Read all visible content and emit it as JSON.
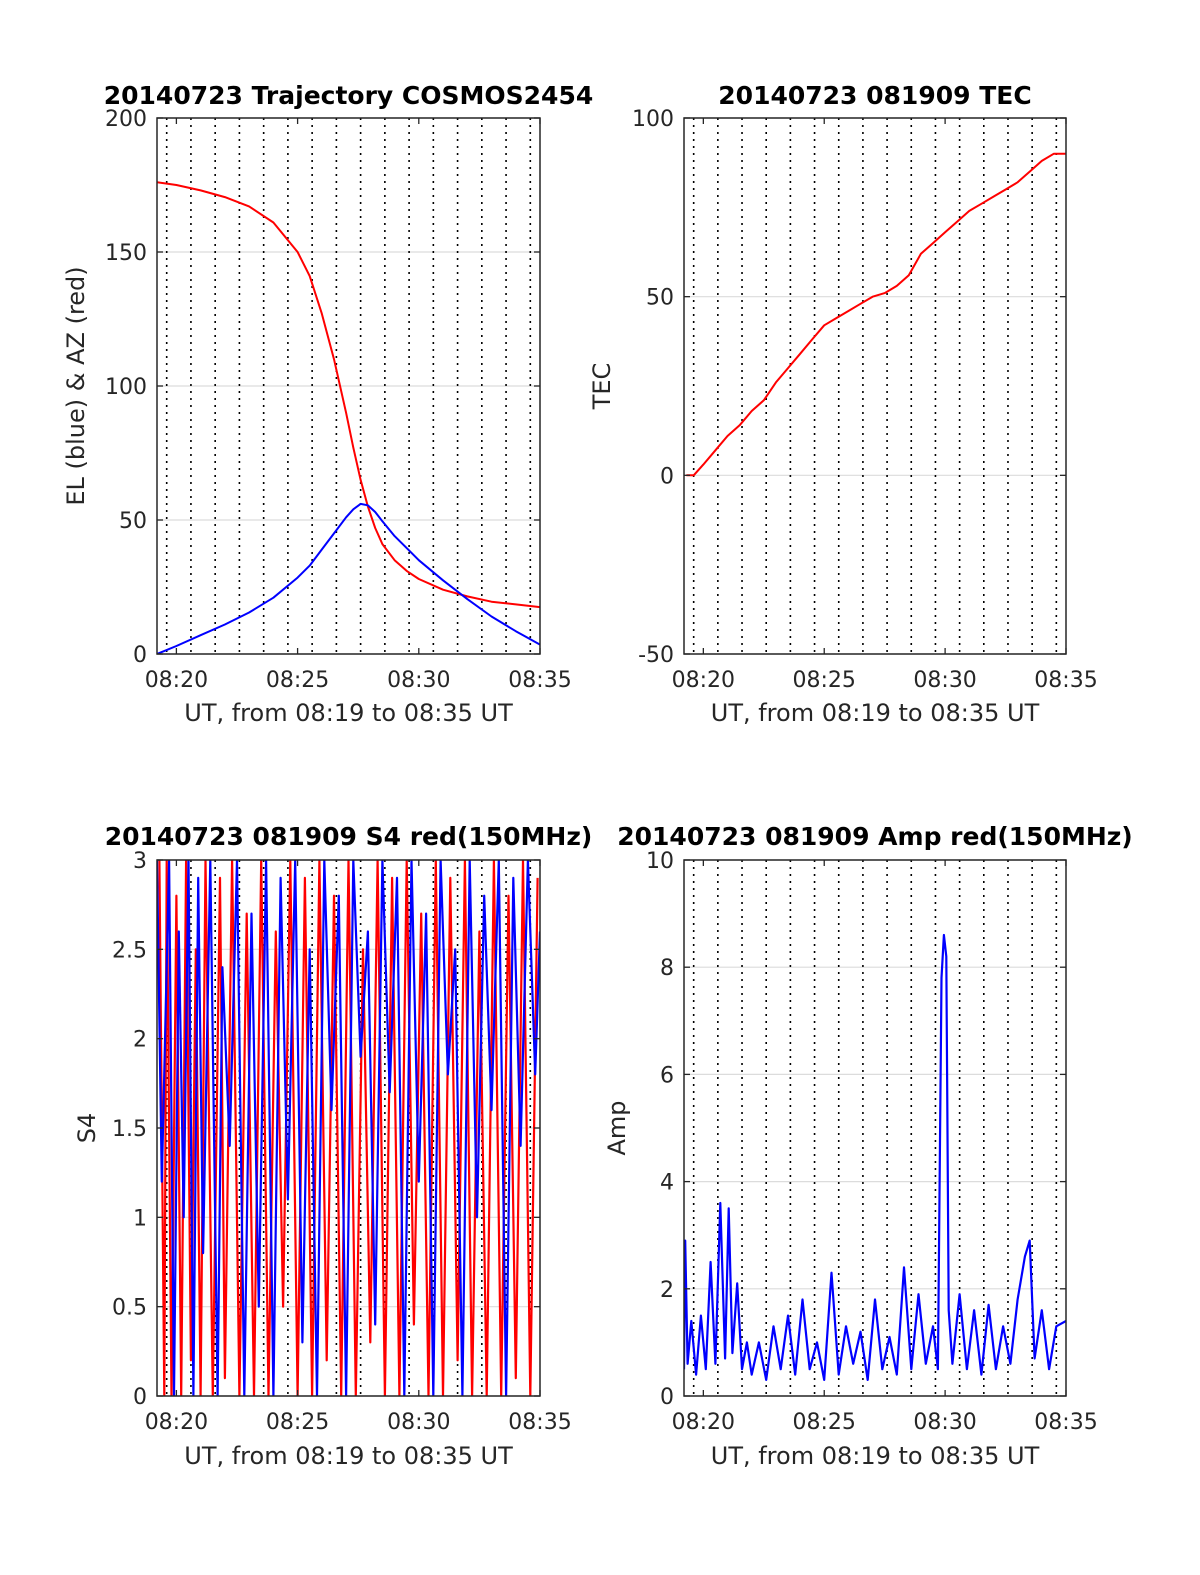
{
  "chart_data": [
    {
      "id": "p1",
      "type": "line",
      "title": "20140723 Trajectory COSMOS2454",
      "xlabel": "UT, from 08:19 to 08:35 UT",
      "ylabel": "EL (blue) & AZ (red)",
      "xlim": [
        19.2,
        35
      ],
      "ylim": [
        0,
        200
      ],
      "xticks": [
        20,
        25,
        30,
        35
      ],
      "xtick_labels": [
        "08:20",
        "08:25",
        "08:30",
        "08:35"
      ],
      "yticks": [
        0,
        50,
        100,
        150,
        200
      ],
      "ytick_labels": [
        "0",
        "50",
        "100",
        "150",
        "200"
      ],
      "minute_gridlines": [
        19.6,
        20.6,
        21.6,
        22.6,
        23.6,
        24.6,
        25.6,
        26.6,
        27.6,
        28.6,
        29.6,
        30.6,
        31.6,
        32.6,
        33.6,
        34.6
      ],
      "grid": true,
      "series": [
        {
          "color": "#ff0000",
          "x": [
            19.2,
            20,
            21,
            22,
            23,
            24,
            25,
            25.5,
            26,
            26.5,
            27,
            27.3,
            27.6,
            27.9,
            28.2,
            28.5,
            29,
            29.5,
            30,
            31,
            32,
            33,
            34,
            35
          ],
          "y": [
            176,
            175,
            173,
            170.5,
            167,
            161,
            150,
            141,
            127,
            110,
            90,
            77,
            65,
            55,
            47,
            41,
            35,
            31,
            28,
            24,
            21.5,
            19.5,
            18.5,
            17.5
          ]
        },
        {
          "color": "#0000ff",
          "x": [
            19.2,
            20,
            21,
            22,
            23,
            24,
            25,
            25.5,
            26,
            26.5,
            27,
            27.3,
            27.6,
            27.9,
            28.2,
            28.5,
            29,
            29.5,
            30,
            31,
            32,
            33,
            34,
            35
          ],
          "y": [
            0,
            3,
            7,
            11,
            15.5,
            21,
            28.5,
            33,
            39,
            45,
            51,
            54,
            56,
            55.5,
            53,
            49.5,
            44,
            39.5,
            35,
            27.5,
            20.5,
            14,
            8.5,
            3.5
          ]
        }
      ]
    },
    {
      "id": "p2",
      "type": "line",
      "title": "20140723 081909 TEC",
      "xlabel": "UT, from 08:19 to 08:35 UT",
      "ylabel": "TEC",
      "xlim": [
        19.2,
        35
      ],
      "ylim": [
        -50,
        100
      ],
      "xticks": [
        20,
        25,
        30,
        35
      ],
      "xtick_labels": [
        "08:20",
        "08:25",
        "08:30",
        "08:35"
      ],
      "yticks": [
        -50,
        0,
        50,
        100
      ],
      "ytick_labels": [
        "-50",
        "0",
        "50",
        "100"
      ],
      "minute_gridlines": [
        19.6,
        20.6,
        21.6,
        22.6,
        23.6,
        24.6,
        25.6,
        26.6,
        27.6,
        28.6,
        29.6,
        30.6,
        31.6,
        32.6,
        33.6,
        34.6
      ],
      "grid": true,
      "series": [
        {
          "color": "#ff0000",
          "x": [
            19.3,
            19.6,
            20,
            20.5,
            21,
            21.5,
            22,
            22.5,
            23,
            23.5,
            24,
            24.5,
            25,
            25.5,
            26,
            26.5,
            27,
            27.5,
            28,
            28.5,
            29,
            29.5,
            30,
            30.5,
            31,
            31.5,
            32,
            32.5,
            33,
            33.5,
            34,
            34.5,
            35
          ],
          "y": [
            0,
            0,
            3,
            7,
            11,
            14,
            18,
            21,
            26,
            30,
            34,
            38,
            42,
            44,
            46,
            48,
            50,
            51,
            53,
            56,
            62,
            65,
            68,
            71,
            74,
            76,
            78,
            80,
            82,
            85,
            88,
            90,
            90
          ]
        }
      ]
    },
    {
      "id": "p3",
      "type": "line",
      "title": "20140723 081909 S4 red(150MHz)",
      "xlabel": "UT, from 08:19 to 08:35 UT",
      "ylabel": "S4",
      "xlim": [
        19.2,
        35
      ],
      "ylim": [
        0,
        3
      ],
      "xticks": [
        20,
        25,
        30,
        35
      ],
      "xtick_labels": [
        "08:20",
        "08:25",
        "08:30",
        "08:35"
      ],
      "yticks": [
        0,
        0.5,
        1,
        1.5,
        2,
        2.5,
        3
      ],
      "ytick_labels": [
        "0",
        "0.5",
        "1",
        "1.5",
        "2",
        "2.5",
        "3"
      ],
      "minute_gridlines": [
        19.6,
        20.6,
        21.6,
        22.6,
        23.6,
        24.6,
        25.6,
        26.6,
        27.6,
        28.6,
        29.6,
        30.6,
        31.6,
        32.6,
        33.6,
        34.6
      ],
      "grid": true,
      "series": [
        {
          "color": "#ff0000",
          "x": [
            19.3,
            19.5,
            19.6,
            19.8,
            20,
            20.2,
            20.4,
            20.6,
            20.8,
            21,
            21.2,
            21.5,
            21.8,
            22,
            22.3,
            22.6,
            22.9,
            23.2,
            23.5,
            23.8,
            24.1,
            24.4,
            24.7,
            25,
            25.3,
            25.6,
            25.9,
            26.2,
            26.5,
            26.8,
            27.1,
            27.4,
            27.7,
            28,
            28.3,
            28.6,
            28.9,
            29.2,
            29.5,
            29.8,
            30.1,
            30.4,
            30.7,
            31,
            31.3,
            31.6,
            31.9,
            32.2,
            32.5,
            32.8,
            33.1,
            33.4,
            33.7,
            34,
            34.3,
            34.6,
            34.9
          ],
          "y": [
            3,
            0,
            3,
            0,
            2.8,
            0,
            3,
            0.2,
            2.5,
            0,
            3,
            0,
            2.9,
            0.1,
            3,
            0,
            2.7,
            0,
            3,
            0,
            2.6,
            0.5,
            3,
            0,
            2.9,
            0,
            3,
            0.2,
            2.8,
            0,
            3,
            0,
            2.5,
            0.3,
            3,
            0,
            2.9,
            0,
            3,
            0.4,
            2.7,
            0,
            3,
            0,
            2.9,
            0.2,
            3,
            0,
            2.6,
            0,
            3,
            0,
            2.8,
            0.1,
            3,
            0,
            2.9
          ]
        },
        {
          "color": "#0000ff",
          "x": [
            19.2,
            19.4,
            19.7,
            19.9,
            20.1,
            20.3,
            20.5,
            20.7,
            20.9,
            21.1,
            21.4,
            21.7,
            21.9,
            22.2,
            22.5,
            22.8,
            23.1,
            23.4,
            23.7,
            24,
            24.3,
            24.6,
            24.9,
            25.2,
            25.5,
            25.8,
            26.1,
            26.4,
            26.7,
            27,
            27.3,
            27.6,
            27.9,
            28.2,
            28.5,
            28.8,
            29.1,
            29.4,
            29.7,
            30,
            30.3,
            30.6,
            30.9,
            31.2,
            31.5,
            31.8,
            32.1,
            32.4,
            32.7,
            33,
            33.3,
            33.6,
            33.9,
            34.2,
            34.5,
            34.8,
            35
          ],
          "y": [
            3,
            1.2,
            3,
            0,
            2.6,
            1.0,
            3,
            0,
            2.9,
            0.8,
            3,
            0.0,
            2.4,
            1.4,
            3,
            0,
            2.7,
            0.5,
            3,
            0,
            2.9,
            1.1,
            3,
            0.3,
            2.5,
            0,
            3,
            1.6,
            2.8,
            0,
            3,
            1.9,
            2.6,
            0.4,
            3,
            1.7,
            2.9,
            0,
            3,
            1.2,
            2.7,
            0,
            3,
            1.8,
            2.5,
            0,
            3,
            1.0,
            2.8,
            1.6,
            3,
            0,
            2.9,
            1.4,
            3,
            1.8,
            2.6
          ]
        }
      ]
    },
    {
      "id": "p4",
      "type": "line",
      "title": "20140723 081909 Amp red(150MHz)",
      "xlabel": "UT, from 08:19 to 08:35 UT",
      "ylabel": "Amp",
      "xlim": [
        19.2,
        35
      ],
      "ylim": [
        0,
        10
      ],
      "xticks": [
        20,
        25,
        30,
        35
      ],
      "xtick_labels": [
        "08:20",
        "08:25",
        "08:30",
        "08:35"
      ],
      "yticks": [
        0,
        2,
        4,
        6,
        8,
        10
      ],
      "ytick_labels": [
        "0",
        "2",
        "4",
        "6",
        "8",
        "10"
      ],
      "minute_gridlines": [
        19.6,
        20.6,
        21.6,
        22.6,
        23.6,
        24.6,
        25.6,
        26.6,
        27.6,
        28.6,
        29.6,
        30.6,
        31.6,
        32.6,
        33.6,
        34.6
      ],
      "grid": true,
      "series": [
        {
          "color": "#0000ff",
          "x": [
            19.2,
            19.25,
            19.35,
            19.5,
            19.7,
            19.9,
            20.1,
            20.3,
            20.5,
            20.7,
            20.9,
            21.05,
            21.2,
            21.4,
            21.6,
            21.8,
            22,
            22.3,
            22.6,
            22.9,
            23.2,
            23.5,
            23.8,
            24.1,
            24.4,
            24.7,
            25,
            25.3,
            25.6,
            25.9,
            26.2,
            26.5,
            26.8,
            27.1,
            27.4,
            27.7,
            28,
            28.3,
            28.6,
            28.9,
            29.2,
            29.5,
            29.7,
            29.85,
            29.95,
            30.05,
            30.15,
            30.3,
            30.6,
            30.9,
            31.2,
            31.5,
            31.8,
            32.1,
            32.4,
            32.7,
            33,
            33.3,
            33.5,
            33.7,
            34,
            34.3,
            34.6,
            35
          ],
          "y": [
            0.5,
            2.9,
            0.6,
            1.4,
            0.4,
            1.5,
            0.5,
            2.5,
            0.6,
            3.6,
            0.7,
            3.5,
            0.8,
            2.1,
            0.5,
            1.0,
            0.4,
            1.0,
            0.3,
            1.3,
            0.5,
            1.5,
            0.4,
            1.8,
            0.5,
            1.0,
            0.3,
            2.3,
            0.4,
            1.3,
            0.6,
            1.2,
            0.3,
            1.8,
            0.5,
            1.1,
            0.4,
            2.4,
            0.5,
            1.9,
            0.6,
            1.3,
            0.5,
            7.8,
            8.6,
            8.2,
            1.6,
            0.6,
            1.9,
            0.5,
            1.6,
            0.4,
            1.7,
            0.5,
            1.3,
            0.6,
            1.8,
            2.6,
            2.9,
            0.7,
            1.6,
            0.5,
            1.3,
            1.4
          ]
        }
      ]
    }
  ]
}
